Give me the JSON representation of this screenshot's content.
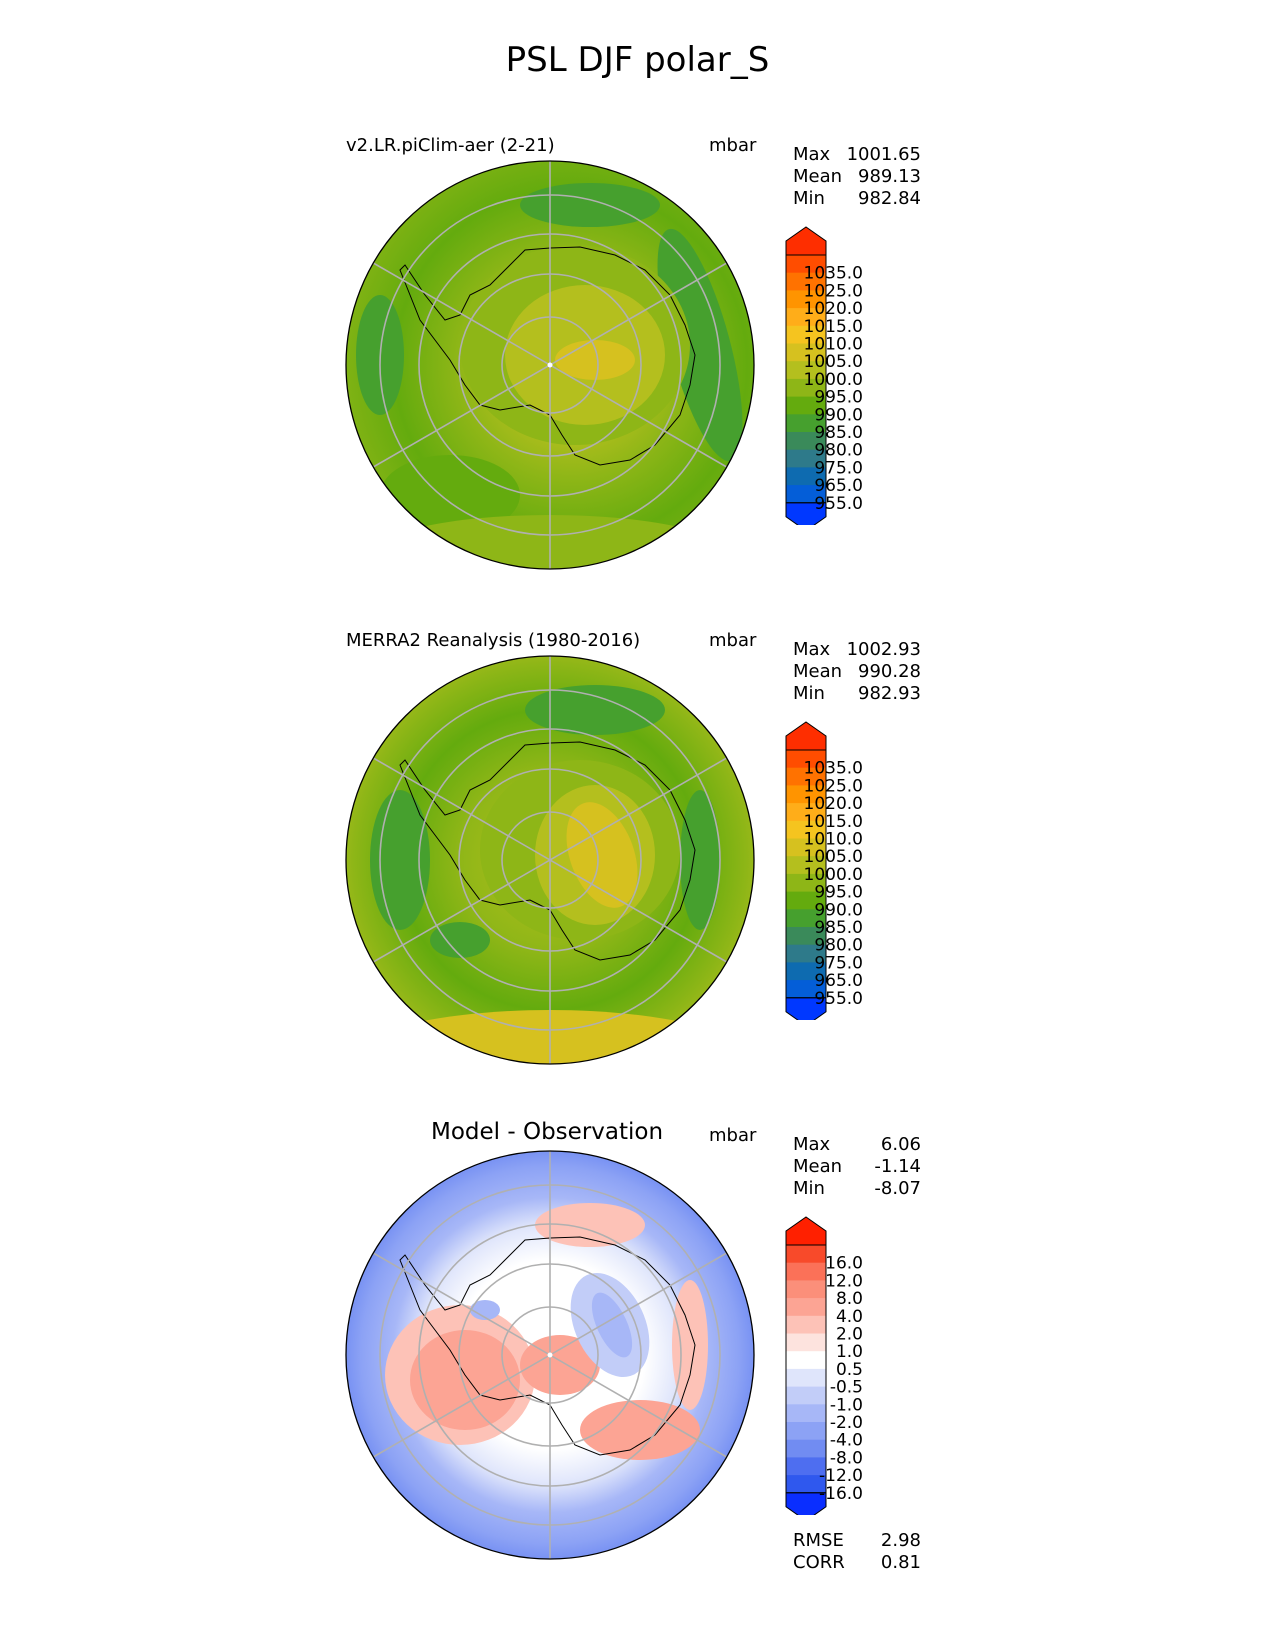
{
  "figure_title": "PSL DJF polar_S",
  "panels": [
    {
      "title": "v2.LR.piClim-aer (2-21)",
      "units": "mbar",
      "stats": [
        {
          "label": "Max",
          "value": "1001.65"
        },
        {
          "label": "Mean",
          "value": "989.13"
        },
        {
          "label": "Min",
          "value": "982.84"
        }
      ]
    },
    {
      "title": "MERRA2 Reanalysis (1980-2016)",
      "units": "mbar",
      "stats": [
        {
          "label": "Max",
          "value": "1002.93"
        },
        {
          "label": "Mean",
          "value": "990.28"
        },
        {
          "label": "Min",
          "value": "982.93"
        }
      ]
    },
    {
      "title": "Model - Observation",
      "units": "mbar",
      "stats": [
        {
          "label": "Max",
          "value": "6.06"
        },
        {
          "label": "Mean",
          "value": "-1.14"
        },
        {
          "label": "Min",
          "value": "-8.07"
        }
      ],
      "footer": [
        {
          "label": "RMSE",
          "value": "2.98"
        },
        {
          "label": "CORR",
          "value": "0.81"
        }
      ]
    }
  ],
  "colorbars": {
    "psl": {
      "levels": [
        "1035.0",
        "1025.0",
        "1020.0",
        "1015.0",
        "1010.0",
        "1005.0",
        "1000.0",
        "995.0",
        "990.0",
        "985.0",
        "980.0",
        "975.0",
        "965.0",
        "955.0"
      ],
      "colors_top_to_bottom": [
        "#fe2e00",
        "#ff4d00",
        "#ff7200",
        "#ff9400",
        "#ffad19",
        "#f5c41f",
        "#d6c11f",
        "#b4bf1e",
        "#8eb617",
        "#64ab0e",
        "#46a02e",
        "#3a8a5a",
        "#2e7a8a",
        "#0e6bb0",
        "#045ed8",
        "#0038ff"
      ]
    },
    "diff": {
      "levels": [
        "16.0",
        "12.0",
        "8.0",
        "4.0",
        "2.0",
        "1.0",
        "0.5",
        "-0.5",
        "-1.0",
        "-2.0",
        "-4.0",
        "-8.0",
        "-12.0",
        "-16.0"
      ],
      "colors_top_to_bottom": [
        "#ff2000",
        "#f84a2a",
        "#fb7158",
        "#fb8f7a",
        "#fca494",
        "#fdc2b7",
        "#fde3de",
        "#ffffff",
        "#dfe5fb",
        "#c2cdf8",
        "#a7b7f7",
        "#8ca2f5",
        "#718cf2",
        "#4e6ef0",
        "#2f58ee",
        "#0a2eff"
      ]
    }
  }
}
